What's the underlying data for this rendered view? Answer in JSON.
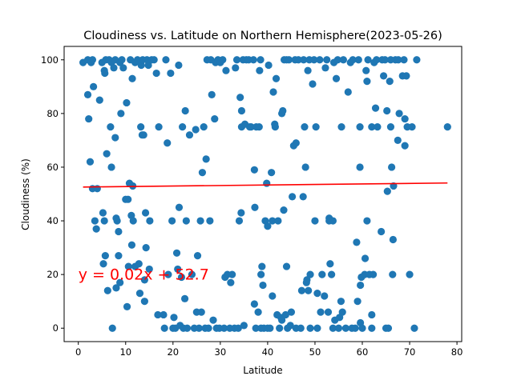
{
  "chart_data": {
    "type": "scatter",
    "title": "Cloudiness vs. Latitude on Northern Hemisphere(2023-05-26)",
    "xlabel": "Latitude",
    "ylabel": "Cloudiness (%)",
    "xlim": [
      -3,
      81
    ],
    "ylim": [
      -5,
      105
    ],
    "xticks": [
      0,
      10,
      20,
      30,
      40,
      50,
      60,
      70,
      80
    ],
    "yticks": [
      0,
      20,
      40,
      60,
      80,
      100
    ],
    "grid": false,
    "marker_color": "#1f77b4",
    "regression": {
      "slope": 0.02,
      "intercept": 52.7,
      "x_range": [
        1.0,
        78.0
      ],
      "y_at_range": [
        52.6,
        54.1
      ],
      "color": "#ff0000",
      "equation": "y = 0.02x + 52.7",
      "equation_anchor": [
        0.0,
        20.0
      ]
    },
    "points": [
      [
        1,
        99
      ],
      [
        2,
        100
      ],
      [
        2,
        87
      ],
      [
        2.2,
        78
      ],
      [
        2.5,
        62
      ],
      [
        2.7,
        99
      ],
      [
        3,
        52
      ],
      [
        3,
        100
      ],
      [
        3.2,
        90
      ],
      [
        3.5,
        40
      ],
      [
        3.8,
        37
      ],
      [
        4,
        52
      ],
      [
        4.5,
        85
      ],
      [
        5,
        99
      ],
      [
        5.2,
        43
      ],
      [
        5.3,
        24
      ],
      [
        5.5,
        40
      ],
      [
        5.5,
        96
      ],
      [
        5.6,
        95
      ],
      [
        5.7,
        27
      ],
      [
        5.8,
        100
      ],
      [
        6,
        65
      ],
      [
        6.2,
        14
      ],
      [
        6.5,
        100
      ],
      [
        6.8,
        75
      ],
      [
        7,
        99
      ],
      [
        7,
        60
      ],
      [
        7.2,
        0
      ],
      [
        7.5,
        97
      ],
      [
        7.8,
        71
      ],
      [
        7.8,
        100
      ],
      [
        8,
        15
      ],
      [
        8,
        41
      ],
      [
        8.2,
        40
      ],
      [
        8.5,
        36
      ],
      [
        8.5,
        27
      ],
      [
        8.8,
        99
      ],
      [
        8.8,
        17
      ],
      [
        9,
        80
      ],
      [
        9.2,
        100
      ],
      [
        9.5,
        97
      ],
      [
        10,
        48
      ],
      [
        10.2,
        84
      ],
      [
        10.3,
        8
      ],
      [
        10.5,
        48
      ],
      [
        10.6,
        23
      ],
      [
        10.8,
        54
      ],
      [
        11,
        100
      ],
      [
        11.2,
        42
      ],
      [
        11.3,
        31
      ],
      [
        11.4,
        93
      ],
      [
        11.5,
        53
      ],
      [
        11.6,
        40
      ],
      [
        12,
        23
      ],
      [
        12,
        99
      ],
      [
        12.5,
        100
      ],
      [
        12.8,
        24
      ],
      [
        13,
        13
      ],
      [
        13.2,
        75
      ],
      [
        13.3,
        98
      ],
      [
        13.5,
        72
      ],
      [
        13.6,
        100
      ],
      [
        13.8,
        72
      ],
      [
        14,
        18
      ],
      [
        14,
        10
      ],
      [
        14.2,
        43
      ],
      [
        14.3,
        30
      ],
      [
        14.5,
        100
      ],
      [
        14.8,
        98
      ],
      [
        15,
        22
      ],
      [
        15.1,
        40
      ],
      [
        15.5,
        100
      ],
      [
        16,
        100
      ],
      [
        16.5,
        95
      ],
      [
        16.8,
        5
      ],
      [
        17,
        75
      ],
      [
        18,
        5
      ],
      [
        18.2,
        0
      ],
      [
        18.5,
        100
      ],
      [
        18.8,
        69
      ],
      [
        19,
        20
      ],
      [
        19.5,
        95
      ],
      [
        19.8,
        40
      ],
      [
        20,
        0
      ],
      [
        20.2,
        4
      ],
      [
        20.5,
        0
      ],
      [
        20.8,
        28
      ],
      [
        21,
        22
      ],
      [
        21.2,
        98
      ],
      [
        21.3,
        45
      ],
      [
        21.5,
        1
      ],
      [
        21.8,
        19
      ],
      [
        22,
        75
      ],
      [
        22.2,
        0
      ],
      [
        22.5,
        11
      ],
      [
        22.6,
        81
      ],
      [
        22.8,
        40
      ],
      [
        23,
        0
      ],
      [
        23.5,
        72
      ],
      [
        24,
        20
      ],
      [
        24.5,
        0
      ],
      [
        24.8,
        74
      ],
      [
        25,
        6
      ],
      [
        25.2,
        27
      ],
      [
        25.5,
        0
      ],
      [
        25.8,
        40
      ],
      [
        26,
        6
      ],
      [
        26.2,
        58
      ],
      [
        26.5,
        75
      ],
      [
        26.8,
        0
      ],
      [
        27,
        63
      ],
      [
        27.2,
        100
      ],
      [
        27.5,
        0
      ],
      [
        27.8,
        40
      ],
      [
        28,
        100
      ],
      [
        28.2,
        87
      ],
      [
        28.5,
        3
      ],
      [
        28.8,
        78
      ],
      [
        29,
        99
      ],
      [
        29.2,
        0
      ],
      [
        29.5,
        100
      ],
      [
        29.8,
        0
      ],
      [
        30,
        99
      ],
      [
        30.5,
        100
      ],
      [
        30.8,
        0
      ],
      [
        31,
        19
      ],
      [
        31.2,
        96
      ],
      [
        31.5,
        20
      ],
      [
        32,
        0
      ],
      [
        32.2,
        17
      ],
      [
        32.5,
        20
      ],
      [
        33,
        0
      ],
      [
        33.2,
        97
      ],
      [
        33.5,
        100
      ],
      [
        33.8,
        0
      ],
      [
        34,
        40
      ],
      [
        34.2,
        86
      ],
      [
        34.4,
        43
      ],
      [
        34.5,
        75
      ],
      [
        34.5,
        81
      ],
      [
        34.8,
        100
      ],
      [
        35,
        1
      ],
      [
        35.2,
        76
      ],
      [
        35.5,
        100
      ],
      [
        36,
        100
      ],
      [
        36.2,
        75
      ],
      [
        36.5,
        75
      ],
      [
        37,
        100
      ],
      [
        37.2,
        59
      ],
      [
        37.2,
        9
      ],
      [
        37.3,
        45
      ],
      [
        37.5,
        0
      ],
      [
        37.6,
        75
      ],
      [
        38,
        6
      ],
      [
        38.2,
        75
      ],
      [
        38.3,
        96
      ],
      [
        38.5,
        100
      ],
      [
        38.6,
        20
      ],
      [
        38.6,
        0
      ],
      [
        38.8,
        23
      ],
      [
        39,
        16
      ],
      [
        39.2,
        0
      ],
      [
        39.5,
        40
      ],
      [
        39.8,
        54
      ],
      [
        40,
        38
      ],
      [
        40,
        0
      ],
      [
        40.2,
        98
      ],
      [
        40.5,
        0
      ],
      [
        40.8,
        58
      ],
      [
        41,
        40
      ],
      [
        41,
        12
      ],
      [
        41.2,
        88
      ],
      [
        41.5,
        76
      ],
      [
        41.6,
        75
      ],
      [
        41.8,
        93
      ],
      [
        42,
        5
      ],
      [
        42.2,
        40
      ],
      [
        42.5,
        0
      ],
      [
        42.8,
        4
      ],
      [
        43,
        3
      ],
      [
        43,
        80
      ],
      [
        43.2,
        81
      ],
      [
        43.4,
        44
      ],
      [
        43.5,
        100
      ],
      [
        43.8,
        5
      ],
      [
        44,
        23
      ],
      [
        44,
        100
      ],
      [
        44.2,
        0
      ],
      [
        44.5,
        100
      ],
      [
        44.8,
        1
      ],
      [
        45,
        6
      ],
      [
        45.2,
        49
      ],
      [
        45.5,
        68
      ],
      [
        45.8,
        100
      ],
      [
        46,
        69
      ],
      [
        46,
        0
      ],
      [
        46.5,
        100
      ],
      [
        47,
        0
      ],
      [
        47.2,
        14
      ],
      [
        47.5,
        49
      ],
      [
        47.6,
        100
      ],
      [
        47.8,
        75
      ],
      [
        48,
        60
      ],
      [
        48.2,
        17
      ],
      [
        48.3,
        18
      ],
      [
        48.5,
        96
      ],
      [
        48.6,
        14
      ],
      [
        48.8,
        100
      ],
      [
        49,
        20
      ],
      [
        49,
        0
      ],
      [
        49.5,
        91
      ],
      [
        49.8,
        100
      ],
      [
        50,
        40
      ],
      [
        50.2,
        75
      ],
      [
        50.5,
        13
      ],
      [
        50.5,
        0
      ],
      [
        51,
        100
      ],
      [
        51.2,
        6
      ],
      [
        51.5,
        20
      ],
      [
        52,
        12
      ],
      [
        52.2,
        97
      ],
      [
        52.5,
        100
      ],
      [
        52.8,
        6
      ],
      [
        53,
        40
      ],
      [
        53,
        41
      ],
      [
        53.2,
        24
      ],
      [
        53.5,
        20
      ],
      [
        53.8,
        0
      ],
      [
        53.8,
        40
      ],
      [
        54,
        99
      ],
      [
        54.2,
        3
      ],
      [
        54.5,
        93
      ],
      [
        54.8,
        100
      ],
      [
        55,
        0
      ],
      [
        55.2,
        4
      ],
      [
        55.5,
        10
      ],
      [
        55.6,
        75
      ],
      [
        55.8,
        6
      ],
      [
        56,
        100
      ],
      [
        56.5,
        0
      ],
      [
        57,
        88
      ],
      [
        57.5,
        99
      ],
      [
        57.8,
        0
      ],
      [
        58,
        100
      ],
      [
        58.5,
        0
      ],
      [
        58.8,
        32
      ],
      [
        59,
        10
      ],
      [
        59.2,
        100
      ],
      [
        59.5,
        60
      ],
      [
        59.5,
        75
      ],
      [
        59.6,
        2
      ],
      [
        59.6,
        16
      ],
      [
        59.8,
        19
      ],
      [
        60,
        0
      ],
      [
        60.5,
        20
      ],
      [
        60.6,
        26
      ],
      [
        60.8,
        96
      ],
      [
        61,
        40
      ],
      [
        61,
        92
      ],
      [
        61.2,
        100
      ],
      [
        61.5,
        20
      ],
      [
        62,
        5
      ],
      [
        62,
        0
      ],
      [
        62,
        75
      ],
      [
        62.3,
        20
      ],
      [
        62.5,
        99
      ],
      [
        62.8,
        82
      ],
      [
        63,
        100
      ],
      [
        63.2,
        75
      ],
      [
        64,
        36
      ],
      [
        64.2,
        100
      ],
      [
        64.5,
        94
      ],
      [
        64.8,
        100
      ],
      [
        65,
        0
      ],
      [
        65.2,
        81
      ],
      [
        65.3,
        51
      ],
      [
        65.5,
        0
      ],
      [
        65.8,
        92
      ],
      [
        66,
        75
      ],
      [
        66,
        100
      ],
      [
        66.2,
        60
      ],
      [
        66.4,
        20
      ],
      [
        66.5,
        33
      ],
      [
        66.6,
        53
      ],
      [
        67,
        100
      ],
      [
        67.5,
        70
      ],
      [
        67.6,
        100
      ],
      [
        67.8,
        80
      ],
      [
        68.5,
        94
      ],
      [
        68.8,
        100
      ],
      [
        69,
        68
      ],
      [
        69,
        78
      ],
      [
        69.3,
        94
      ],
      [
        69.5,
        75
      ],
      [
        70,
        20
      ],
      [
        70.5,
        75
      ],
      [
        71,
        0
      ],
      [
        71.5,
        100
      ],
      [
        78,
        75
      ]
    ]
  }
}
